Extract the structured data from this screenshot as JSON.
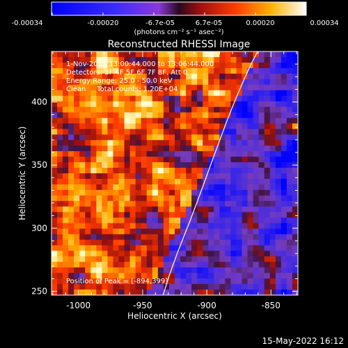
{
  "colorbar": {
    "tick_labels": [
      "-0.00034",
      "-0.00020",
      "-6.7e-05",
      "6.7e-05",
      "0.00020",
      "0.00034"
    ],
    "unit_label": "(photons cm⁻² s⁻¹ asec⁻²)",
    "range": [
      -0.00034,
      0.00034
    ]
  },
  "image": {
    "title": "Reconstructed RHESSI Image",
    "info_lines": [
      "1-Nov-2011 13:00:44.000 to 13:06:44.000",
      "Detectors: 3F 4F 5F 6F 7F 8F, Att 0",
      "Energy Range: 25.0 - 50.0 keV",
      "Clean     Total counts: 1.20E+04"
    ],
    "peak_text": "Position of Peak = [-894,399]"
  },
  "axes": {
    "xlabel": "Heliocentric X (arcsec)",
    "ylabel": "Heliocentric Y (arcsec)",
    "x_ticks": [
      "-1000",
      "-950",
      "-900",
      "-850"
    ],
    "x_tick_values": [
      -1000,
      -950,
      -900,
      -850
    ],
    "y_ticks": [
      "400",
      "350",
      "300",
      "250"
    ],
    "y_tick_values": [
      400,
      350,
      300,
      250
    ],
    "xlim": [
      -1021,
      -829
    ],
    "ylim": [
      247,
      440
    ]
  },
  "footer": {
    "date": "15-May-2022 16:12"
  }
}
